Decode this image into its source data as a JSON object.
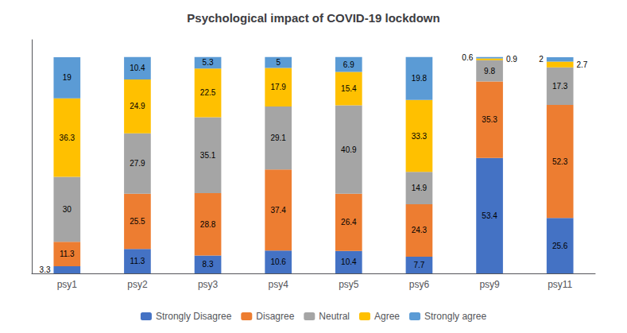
{
  "chart_data": {
    "type": "bar",
    "title": "Psychological impact of COVID-19 lockdown",
    "categories": [
      "psy1",
      "psy2",
      "psy3",
      "psy4",
      "psy5",
      "psy6",
      "psy9",
      "psy11"
    ],
    "series": [
      {
        "name": "Strongly Disagree",
        "color": "#4472C4",
        "values": [
          3.3,
          11.3,
          8.3,
          10.6,
          10.4,
          7.7,
          53.4,
          25.6
        ]
      },
      {
        "name": "Disagree",
        "color": "#ED7D31",
        "values": [
          11.3,
          25.5,
          28.8,
          37.4,
          26.4,
          24.3,
          35.3,
          52.3
        ]
      },
      {
        "name": "Neutral",
        "color": "#A5A5A5",
        "values": [
          30,
          27.9,
          35.1,
          29.1,
          40.9,
          14.9,
          9.8,
          17.3
        ]
      },
      {
        "name": "Agree",
        "color": "#FFC000",
        "values": [
          36.3,
          24.9,
          22.5,
          17.9,
          15.4,
          33.3,
          0.9,
          2.7
        ]
      },
      {
        "name": "Strongly agree",
        "color": "#5B9BD5",
        "values": [
          19,
          10.4,
          5.3,
          5,
          6.9,
          19.8,
          0.6,
          2
        ]
      }
    ],
    "stacked": true,
    "data_labels": true,
    "ylim": [
      0,
      108
    ],
    "yticks": [],
    "grid": false,
    "legend": "bottom",
    "tick_labels": "x"
  }
}
